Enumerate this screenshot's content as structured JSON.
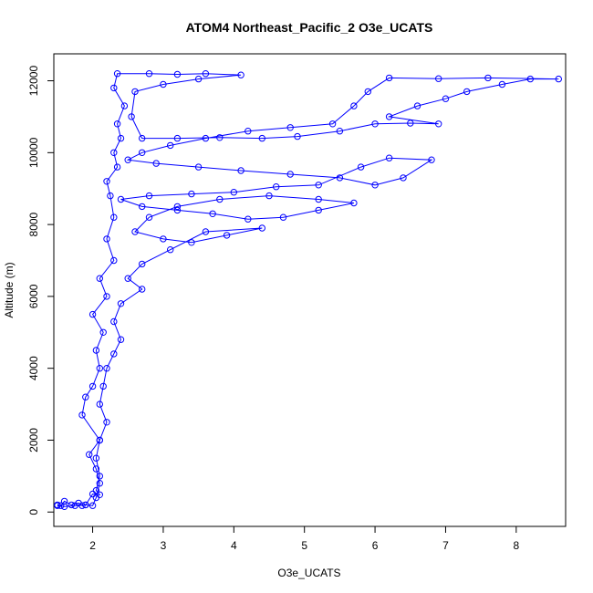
{
  "chart_data": {
    "type": "scatter",
    "title": "ATOM4 Northeast_Pacific_2 O3e_UCATS",
    "xlabel": "O3e_UCATS",
    "ylabel": "Altitude (m)",
    "xlim": [
      1.45,
      8.7
    ],
    "ylim": [
      -400,
      12750
    ],
    "x_ticks": [
      2,
      3,
      4,
      5,
      6,
      7,
      8
    ],
    "y_ticks": [
      0,
      2000,
      4000,
      6000,
      8000,
      10000,
      12000
    ],
    "grid": false,
    "color": "#0000ff",
    "marker": "open-circle",
    "connected": true,
    "series": [
      {
        "values": [
          [
            1.5,
            200
          ],
          [
            1.55,
            180
          ],
          [
            1.6,
            300
          ],
          [
            1.7,
            200
          ],
          [
            1.8,
            250
          ],
          [
            1.85,
            180
          ],
          [
            1.9,
            200
          ],
          [
            2.0,
            180
          ],
          [
            2.05,
            400
          ],
          [
            2.1,
            800
          ],
          [
            2.05,
            1200
          ],
          [
            1.95,
            1600
          ],
          [
            2.1,
            2000
          ],
          [
            1.85,
            2700
          ],
          [
            1.9,
            3200
          ],
          [
            2.0,
            3500
          ],
          [
            2.1,
            4000
          ],
          [
            2.05,
            4500
          ],
          [
            2.15,
            5000
          ],
          [
            2.0,
            5500
          ],
          [
            2.2,
            6000
          ],
          [
            2.1,
            6500
          ],
          [
            2.3,
            7000
          ],
          [
            2.2,
            7600
          ],
          [
            2.3,
            8200
          ],
          [
            2.25,
            8800
          ],
          [
            2.2,
            9200
          ],
          [
            2.35,
            9600
          ],
          [
            2.3,
            10000
          ],
          [
            2.4,
            10400
          ],
          [
            2.35,
            10800
          ],
          [
            2.45,
            11300
          ],
          [
            2.3,
            11800
          ],
          [
            2.35,
            12200
          ],
          [
            2.8,
            12200
          ],
          [
            3.2,
            12180
          ],
          [
            3.6,
            12200
          ],
          [
            4.1,
            12160
          ],
          [
            3.5,
            12050
          ],
          [
            3.0,
            11900
          ],
          [
            2.6,
            11700
          ],
          [
            2.55,
            11000
          ],
          [
            2.7,
            10400
          ],
          [
            3.2,
            10400
          ],
          [
            3.8,
            10420
          ],
          [
            4.4,
            10400
          ],
          [
            4.9,
            10450
          ],
          [
            5.5,
            10600
          ],
          [
            6.0,
            10800
          ],
          [
            6.5,
            10820
          ],
          [
            6.9,
            10800
          ],
          [
            6.2,
            11000
          ],
          [
            6.6,
            11300
          ],
          [
            7.0,
            11500
          ],
          [
            7.3,
            11700
          ],
          [
            7.8,
            11900
          ],
          [
            8.2,
            12050
          ],
          [
            8.6,
            12050
          ],
          [
            7.6,
            12080
          ],
          [
            6.9,
            12060
          ],
          [
            6.2,
            12080
          ],
          [
            5.9,
            11700
          ],
          [
            5.7,
            11300
          ],
          [
            5.4,
            10800
          ],
          [
            4.8,
            10700
          ],
          [
            4.2,
            10600
          ],
          [
            3.6,
            10400
          ],
          [
            3.1,
            10200
          ],
          [
            2.7,
            10000
          ],
          [
            2.5,
            9800
          ],
          [
            2.9,
            9700
          ],
          [
            3.5,
            9600
          ],
          [
            4.1,
            9500
          ],
          [
            4.8,
            9400
          ],
          [
            5.5,
            9300
          ],
          [
            6.0,
            9100
          ],
          [
            6.4,
            9300
          ],
          [
            6.8,
            9800
          ],
          [
            6.2,
            9850
          ],
          [
            5.8,
            9600
          ],
          [
            5.2,
            9100
          ],
          [
            4.6,
            9050
          ],
          [
            4.0,
            8900
          ],
          [
            3.4,
            8850
          ],
          [
            2.8,
            8800
          ],
          [
            2.4,
            8700
          ],
          [
            2.7,
            8500
          ],
          [
            3.2,
            8400
          ],
          [
            3.7,
            8300
          ],
          [
            4.2,
            8150
          ],
          [
            4.7,
            8200
          ],
          [
            5.2,
            8400
          ],
          [
            5.7,
            8600
          ],
          [
            5.2,
            8700
          ],
          [
            4.5,
            8800
          ],
          [
            3.8,
            8700
          ],
          [
            3.2,
            8500
          ],
          [
            2.8,
            8200
          ],
          [
            2.6,
            7800
          ],
          [
            3.0,
            7600
          ],
          [
            3.4,
            7500
          ],
          [
            3.9,
            7700
          ],
          [
            4.4,
            7900
          ],
          [
            3.6,
            7800
          ],
          [
            3.1,
            7300
          ],
          [
            2.7,
            6900
          ],
          [
            2.5,
            6500
          ],
          [
            2.7,
            6200
          ],
          [
            2.4,
            5800
          ],
          [
            2.3,
            5300
          ],
          [
            2.4,
            4800
          ],
          [
            2.3,
            4400
          ],
          [
            2.2,
            4000
          ],
          [
            2.15,
            3500
          ],
          [
            2.1,
            3000
          ],
          [
            2.2,
            2500
          ],
          [
            2.1,
            2000
          ],
          [
            2.05,
            1500
          ],
          [
            2.1,
            1000
          ],
          [
            2.05,
            600
          ],
          [
            2.1,
            480
          ],
          [
            2.0,
            500
          ],
          [
            1.9,
            200
          ],
          [
            1.75,
            180
          ],
          [
            1.6,
            150
          ],
          [
            1.5,
            180
          ]
        ]
      }
    ]
  }
}
